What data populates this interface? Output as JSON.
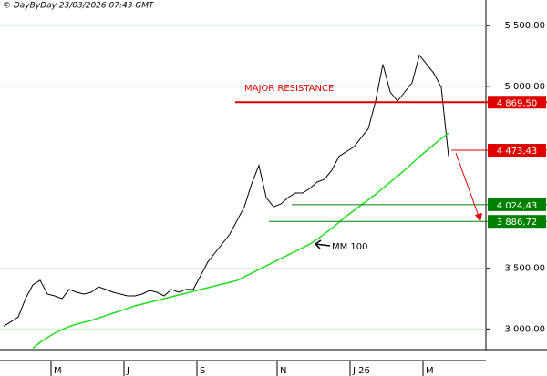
{
  "chart_data": {
    "type": "line",
    "header": "© DayByDay 23/03/2026  07:43 GMT",
    "categories": [
      null,
      null,
      null,
      null,
      null,
      null,
      null,
      "M",
      null,
      null,
      null,
      null,
      null,
      null,
      null,
      null,
      null,
      "J",
      null,
      null,
      null,
      null,
      null,
      null,
      null,
      null,
      null,
      "S",
      null,
      null,
      null,
      null,
      null,
      null,
      null,
      null,
      null,
      null,
      "N",
      null,
      null,
      null,
      null,
      null,
      null,
      null,
      null,
      null,
      "J 26",
      null,
      null,
      null,
      null,
      null,
      null,
      null,
      null,
      null,
      "M",
      null,
      null,
      null
    ],
    "series": [
      {
        "color": "#000000",
        "values": [
          3023,
          3060,
          3098,
          3250,
          3363,
          3401,
          3288,
          3273,
          3250,
          3326,
          3303,
          3288,
          3303,
          3348,
          3326,
          3303,
          3288,
          3273,
          3273,
          3288,
          3318,
          3303,
          3273,
          3326,
          3303,
          3326,
          3326,
          3439,
          3553,
          3629,
          3704,
          3780,
          3894,
          4007,
          4197,
          4348,
          4083,
          4007,
          4030,
          4083,
          4121,
          4121,
          4159,
          4212,
          4235,
          4310,
          4424,
          4462,
          4500,
          4576,
          4651,
          4879,
          5182,
          4954,
          4879,
          4954,
          5030,
          5257,
          5182,
          5106,
          4992,
          4424
        ]
      },
      {
        "name": "MM 100",
        "color": "#22dd22",
        "values": [
          null,
          null,
          null,
          null,
          2840,
          2890,
          2930,
          2965,
          2995,
          3020,
          3040,
          3055,
          3070,
          3090,
          3110,
          3130,
          3150,
          3170,
          3190,
          3205,
          3220,
          3235,
          3250,
          3265,
          3280,
          3295,
          3310,
          3325,
          3340,
          3355,
          3370,
          3385,
          3400,
          3430,
          3460,
          3490,
          3520,
          3550,
          3580,
          3610,
          3640,
          3670,
          3700,
          3740,
          3785,
          3830,
          3880,
          3930,
          3975,
          4020,
          4065,
          4110,
          4160,
          4210,
          4260,
          4310,
          4365,
          4420,
          4470,
          4520,
          4570,
          4615
        ]
      }
    ],
    "ylim": [
      2830,
      5712
    ],
    "yticks": [
      {
        "value": 3000,
        "label": "3 000,00"
      },
      {
        "value": 3500,
        "label": "3 500,00"
      },
      {
        "value": 5000,
        "label": "5 000,00"
      },
      {
        "value": 5500,
        "label": "5 500,00"
      }
    ],
    "grid": true,
    "levels": [
      {
        "value": 4869.5,
        "label": "4 869,50",
        "color": "#e00000"
      },
      {
        "value": 4473.43,
        "label": "4 473,43",
        "color": "#e00000"
      },
      {
        "value": 4024.43,
        "label": "4 024,43",
        "color": "#008000"
      },
      {
        "value": 3886.72,
        "label": "3 886,72",
        "color": "#008000"
      }
    ],
    "annotations": [
      "MAJOR RESISTANCE"
    ]
  }
}
